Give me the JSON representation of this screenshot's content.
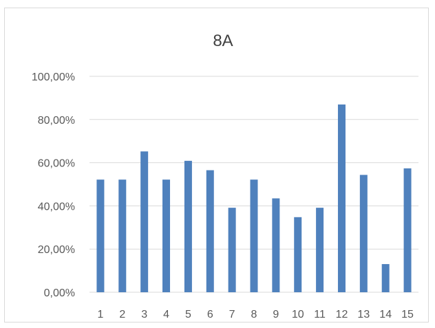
{
  "chart_data": {
    "type": "bar",
    "title": "8A",
    "xlabel": "",
    "ylabel": "",
    "categories": [
      "1",
      "2",
      "3",
      "4",
      "5",
      "6",
      "7",
      "8",
      "9",
      "10",
      "11",
      "12",
      "13",
      "14",
      "15"
    ],
    "values": [
      52.17,
      52.17,
      65.22,
      52.17,
      60.87,
      56.52,
      39.13,
      52.17,
      43.48,
      34.78,
      39.13,
      86.96,
      54.35,
      13.04,
      57.38
    ],
    "ylim": [
      0,
      100
    ],
    "yticks": [
      0,
      20,
      40,
      60,
      80,
      100
    ],
    "ytick_labels": [
      "0,00%",
      "20,00%",
      "40,00%",
      "60,00%",
      "80,00%",
      "100,00%"
    ],
    "grid": true,
    "legend": "none",
    "bar_color": "#4f81bd",
    "grid_color": "#d9d9d9"
  }
}
